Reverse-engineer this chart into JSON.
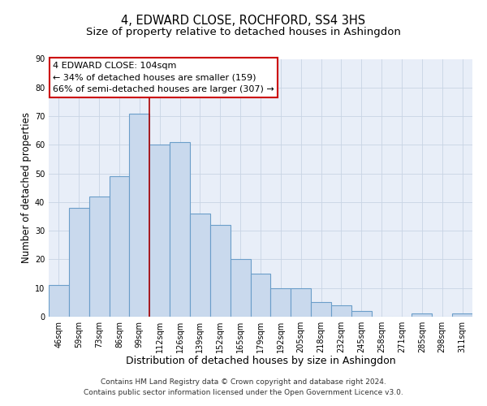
{
  "title": "4, EDWARD CLOSE, ROCHFORD, SS4 3HS",
  "subtitle": "Size of property relative to detached houses in Ashingdon",
  "xlabel": "Distribution of detached houses by size in Ashingdon",
  "ylabel": "Number of detached properties",
  "bar_labels": [
    "46sqm",
    "59sqm",
    "73sqm",
    "86sqm",
    "99sqm",
    "112sqm",
    "126sqm",
    "139sqm",
    "152sqm",
    "165sqm",
    "179sqm",
    "192sqm",
    "205sqm",
    "218sqm",
    "232sqm",
    "245sqm",
    "258sqm",
    "271sqm",
    "285sqm",
    "298sqm",
    "311sqm"
  ],
  "bar_values": [
    11,
    38,
    42,
    49,
    71,
    60,
    61,
    36,
    32,
    20,
    15,
    10,
    10,
    5,
    4,
    2,
    0,
    0,
    1,
    0,
    1
  ],
  "bar_color": "#c9d9ed",
  "bar_edgecolor": "#6b9ec9",
  "bar_linewidth": 0.8,
  "vline_x": 4.5,
  "vline_color": "#aa0000",
  "vline_linewidth": 1.2,
  "annotation_lines": [
    "4 EDWARD CLOSE: 104sqm",
    "← 34% of detached houses are smaller (159)",
    "66% of semi-detached houses are larger (307) →"
  ],
  "ylim": [
    0,
    90
  ],
  "yticks": [
    0,
    10,
    20,
    30,
    40,
    50,
    60,
    70,
    80,
    90
  ],
  "grid_color": "#c8d4e4",
  "background_color": "#e8eef8",
  "footer_line1": "Contains HM Land Registry data © Crown copyright and database right 2024.",
  "footer_line2": "Contains public sector information licensed under the Open Government Licence v3.0.",
  "title_fontsize": 10.5,
  "subtitle_fontsize": 9.5,
  "xlabel_fontsize": 9,
  "ylabel_fontsize": 8.5,
  "tick_fontsize": 7,
  "annotation_fontsize": 8,
  "footer_fontsize": 6.5
}
